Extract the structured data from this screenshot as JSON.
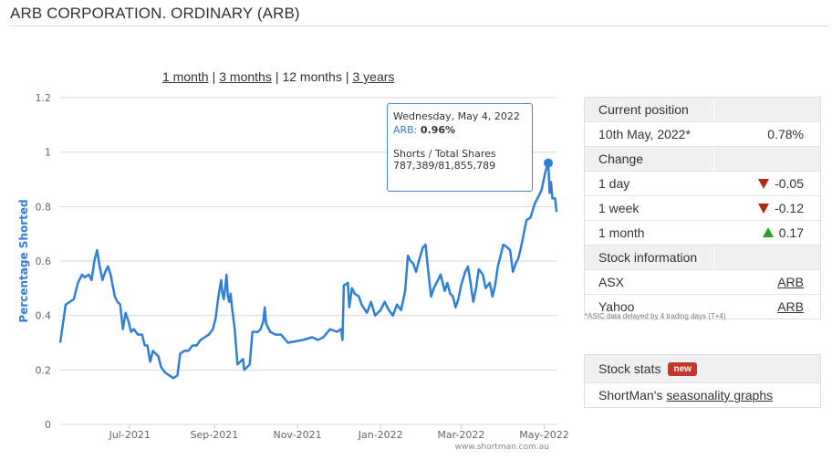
{
  "page": {
    "title": "ARB CORPORATION. ORDINARY (ARB)"
  },
  "range_links": {
    "one_month": "1 month",
    "three_months": "3 months",
    "twelve_months": "12 months",
    "three_years": "3 years",
    "separator": "|"
  },
  "tooltip": {
    "date": "Wednesday, May 4, 2022",
    "series_label": "ARB:",
    "value": "0.96%",
    "shares_label": "Shorts / Total Shares",
    "shares_value": "787,389/81,855,789"
  },
  "watermark": "www.shortman.com.au",
  "colors": {
    "line": "#2f7ed8",
    "down": "#b02a14",
    "up": "#22a322",
    "badge": "#c0392b"
  },
  "position_panel": {
    "current_header": "Current position",
    "current_date": "10th May, 2022*",
    "current_value": "0.78%",
    "change_header": "Change",
    "changes": [
      {
        "label": "1 day",
        "value": "-0.05",
        "direction": "down"
      },
      {
        "label": "1 week",
        "value": "-0.12",
        "direction": "down"
      },
      {
        "label": "1 month",
        "value": "0.17",
        "direction": "up"
      }
    ],
    "info_header": "Stock information",
    "links": [
      {
        "label": "ASX",
        "link": "ARB"
      },
      {
        "label": "Yahoo",
        "link": "ARB"
      }
    ]
  },
  "asic_note": "*ASIC data delayed by 4 trading days (T+4)",
  "stats_panel": {
    "header": "Stock stats",
    "badge": "new",
    "row_prefix": "ShortMan's",
    "row_link": "seasonality graphs"
  },
  "chart_data": {
    "type": "line",
    "title": "",
    "xlabel": "",
    "ylabel": "Percentage Shorted",
    "ylim": [
      0,
      1.2
    ],
    "yticks": [
      "0",
      "0.2",
      "0.4",
      "0.6",
      "0.8",
      "1",
      "1.2"
    ],
    "xticks": [
      {
        "label": "Jul-2021",
        "date": "2021-07-01"
      },
      {
        "label": "Sep-2021",
        "date": "2021-09-01"
      },
      {
        "label": "Nov-2021",
        "date": "2021-11-01"
      },
      {
        "label": "Jan-2022",
        "date": "2022-01-01"
      },
      {
        "label": "Mar-2022",
        "date": "2022-03-01"
      },
      {
        "label": "May-2022",
        "date": "2022-05-01"
      }
    ],
    "xlim": [
      "2021-05-11",
      "2022-05-10"
    ],
    "grid": true,
    "highlight": {
      "date": "2022-05-04",
      "value": 0.96
    },
    "series": [
      {
        "values": [
          [
            "2021-05-11",
            0.3
          ],
          [
            "2021-05-13",
            0.37
          ],
          [
            "2021-05-15",
            0.44
          ],
          [
            "2021-05-18",
            0.45
          ],
          [
            "2021-05-21",
            0.46
          ],
          [
            "2021-05-24",
            0.52
          ],
          [
            "2021-05-27",
            0.55
          ],
          [
            "2021-05-29",
            0.54
          ],
          [
            "2021-06-01",
            0.55
          ],
          [
            "2021-06-03",
            0.53
          ],
          [
            "2021-06-05",
            0.6
          ],
          [
            "2021-06-07",
            0.64
          ],
          [
            "2021-06-09",
            0.58
          ],
          [
            "2021-06-11",
            0.53
          ],
          [
            "2021-06-13",
            0.56
          ],
          [
            "2021-06-15",
            0.58
          ],
          [
            "2021-06-17",
            0.55
          ],
          [
            "2021-06-20",
            0.47
          ],
          [
            "2021-06-22",
            0.45
          ],
          [
            "2021-06-24",
            0.44
          ],
          [
            "2021-06-26",
            0.35
          ],
          [
            "2021-06-28",
            0.41
          ],
          [
            "2021-06-30",
            0.38
          ],
          [
            "2021-07-02",
            0.34
          ],
          [
            "2021-07-04",
            0.35
          ],
          [
            "2021-07-07",
            0.33
          ],
          [
            "2021-07-10",
            0.33
          ],
          [
            "2021-07-12",
            0.29
          ],
          [
            "2021-07-14",
            0.29
          ],
          [
            "2021-07-16",
            0.23
          ],
          [
            "2021-07-18",
            0.27
          ],
          [
            "2021-07-20",
            0.26
          ],
          [
            "2021-07-22",
            0.25
          ],
          [
            "2021-07-24",
            0.21
          ],
          [
            "2021-07-27",
            0.19
          ],
          [
            "2021-07-30",
            0.18
          ],
          [
            "2021-08-02",
            0.17
          ],
          [
            "2021-08-05",
            0.18
          ],
          [
            "2021-08-07",
            0.26
          ],
          [
            "2021-08-10",
            0.27
          ],
          [
            "2021-08-13",
            0.27
          ],
          [
            "2021-08-16",
            0.29
          ],
          [
            "2021-08-19",
            0.29
          ],
          [
            "2021-08-22",
            0.31
          ],
          [
            "2021-08-25",
            0.32
          ],
          [
            "2021-08-28",
            0.33
          ],
          [
            "2021-08-31",
            0.35
          ],
          [
            "2021-09-02",
            0.39
          ],
          [
            "2021-09-04",
            0.47
          ],
          [
            "2021-09-06",
            0.53
          ],
          [
            "2021-09-07",
            0.48
          ],
          [
            "2021-09-08",
            0.46
          ],
          [
            "2021-09-09",
            0.5
          ],
          [
            "2021-09-10",
            0.55
          ],
          [
            "2021-09-11",
            0.47
          ],
          [
            "2021-09-12",
            0.45
          ],
          [
            "2021-09-13",
            0.48
          ],
          [
            "2021-09-14",
            0.43
          ],
          [
            "2021-09-16",
            0.35
          ],
          [
            "2021-09-18",
            0.22
          ],
          [
            "2021-09-20",
            0.23
          ],
          [
            "2021-09-22",
            0.24
          ],
          [
            "2021-09-23",
            0.2
          ],
          [
            "2021-09-25",
            0.21
          ],
          [
            "2021-09-27",
            0.22
          ],
          [
            "2021-09-29",
            0.34
          ],
          [
            "2021-10-01",
            0.34
          ],
          [
            "2021-10-03",
            0.34
          ],
          [
            "2021-10-05",
            0.35
          ],
          [
            "2021-10-07",
            0.38
          ],
          [
            "2021-10-08",
            0.43
          ],
          [
            "2021-10-09",
            0.37
          ],
          [
            "2021-10-12",
            0.34
          ],
          [
            "2021-10-16",
            0.33
          ],
          [
            "2021-10-20",
            0.33
          ],
          [
            "2021-10-25",
            0.3
          ],
          [
            "2021-11-05",
            0.31
          ],
          [
            "2021-11-12",
            0.32
          ],
          [
            "2021-11-16",
            0.31
          ],
          [
            "2021-11-20",
            0.32
          ],
          [
            "2021-11-25",
            0.35
          ],
          [
            "2021-11-30",
            0.34
          ],
          [
            "2021-12-03",
            0.35
          ],
          [
            "2021-12-04",
            0.31
          ],
          [
            "2021-12-05",
            0.51
          ],
          [
            "2021-12-08",
            0.52
          ],
          [
            "2021-12-09",
            0.43
          ],
          [
            "2021-12-11",
            0.5
          ],
          [
            "2021-12-13",
            0.48
          ],
          [
            "2021-12-16",
            0.47
          ],
          [
            "2021-12-18",
            0.44
          ],
          [
            "2021-12-22",
            0.41
          ],
          [
            "2021-12-25",
            0.45
          ],
          [
            "2021-12-28",
            0.4
          ],
          [
            "2022-01-01",
            0.42
          ],
          [
            "2022-01-04",
            0.45
          ],
          [
            "2022-01-07",
            0.42
          ],
          [
            "2022-01-10",
            0.4
          ],
          [
            "2022-01-13",
            0.44
          ],
          [
            "2022-01-16",
            0.42
          ],
          [
            "2022-01-19",
            0.49
          ],
          [
            "2022-01-21",
            0.62
          ],
          [
            "2022-01-23",
            0.6
          ],
          [
            "2022-01-25",
            0.59
          ],
          [
            "2022-01-27",
            0.56
          ],
          [
            "2022-01-29",
            0.6
          ],
          [
            "2022-02-01",
            0.65
          ],
          [
            "2022-02-03",
            0.66
          ],
          [
            "2022-02-05",
            0.56
          ],
          [
            "2022-02-07",
            0.47
          ],
          [
            "2022-02-09",
            0.5
          ],
          [
            "2022-02-11",
            0.52
          ],
          [
            "2022-02-14",
            0.55
          ],
          [
            "2022-02-17",
            0.49
          ],
          [
            "2022-02-19",
            0.52
          ],
          [
            "2022-02-21",
            0.48
          ],
          [
            "2022-02-23",
            0.47
          ],
          [
            "2022-02-25",
            0.43
          ],
          [
            "2022-02-27",
            0.46
          ],
          [
            "2022-03-01",
            0.51
          ],
          [
            "2022-03-04",
            0.56
          ],
          [
            "2022-03-06",
            0.58
          ],
          [
            "2022-03-08",
            0.52
          ],
          [
            "2022-03-10",
            0.45
          ],
          [
            "2022-03-12",
            0.5
          ],
          [
            "2022-03-14",
            0.57
          ],
          [
            "2022-03-17",
            0.55
          ],
          [
            "2022-03-19",
            0.5
          ],
          [
            "2022-03-22",
            0.52
          ],
          [
            "2022-03-24",
            0.47
          ],
          [
            "2022-03-26",
            0.51
          ],
          [
            "2022-03-28",
            0.58
          ],
          [
            "2022-03-30",
            0.62
          ],
          [
            "2022-04-01",
            0.66
          ],
          [
            "2022-04-04",
            0.65
          ],
          [
            "2022-04-06",
            0.64
          ],
          [
            "2022-04-08",
            0.56
          ],
          [
            "2022-04-10",
            0.59
          ],
          [
            "2022-04-12",
            0.61
          ],
          [
            "2022-04-14",
            0.65
          ],
          [
            "2022-04-16",
            0.7
          ],
          [
            "2022-04-18",
            0.75
          ],
          [
            "2022-04-21",
            0.76
          ],
          [
            "2022-04-24",
            0.81
          ],
          [
            "2022-04-27",
            0.84
          ],
          [
            "2022-04-29",
            0.86
          ],
          [
            "2022-05-02",
            0.93
          ],
          [
            "2022-05-04",
            0.96
          ],
          [
            "2022-05-05",
            0.85
          ],
          [
            "2022-05-06",
            0.89
          ],
          [
            "2022-05-07",
            0.83
          ],
          [
            "2022-05-09",
            0.83
          ],
          [
            "2022-05-10",
            0.78
          ]
        ]
      }
    ]
  }
}
